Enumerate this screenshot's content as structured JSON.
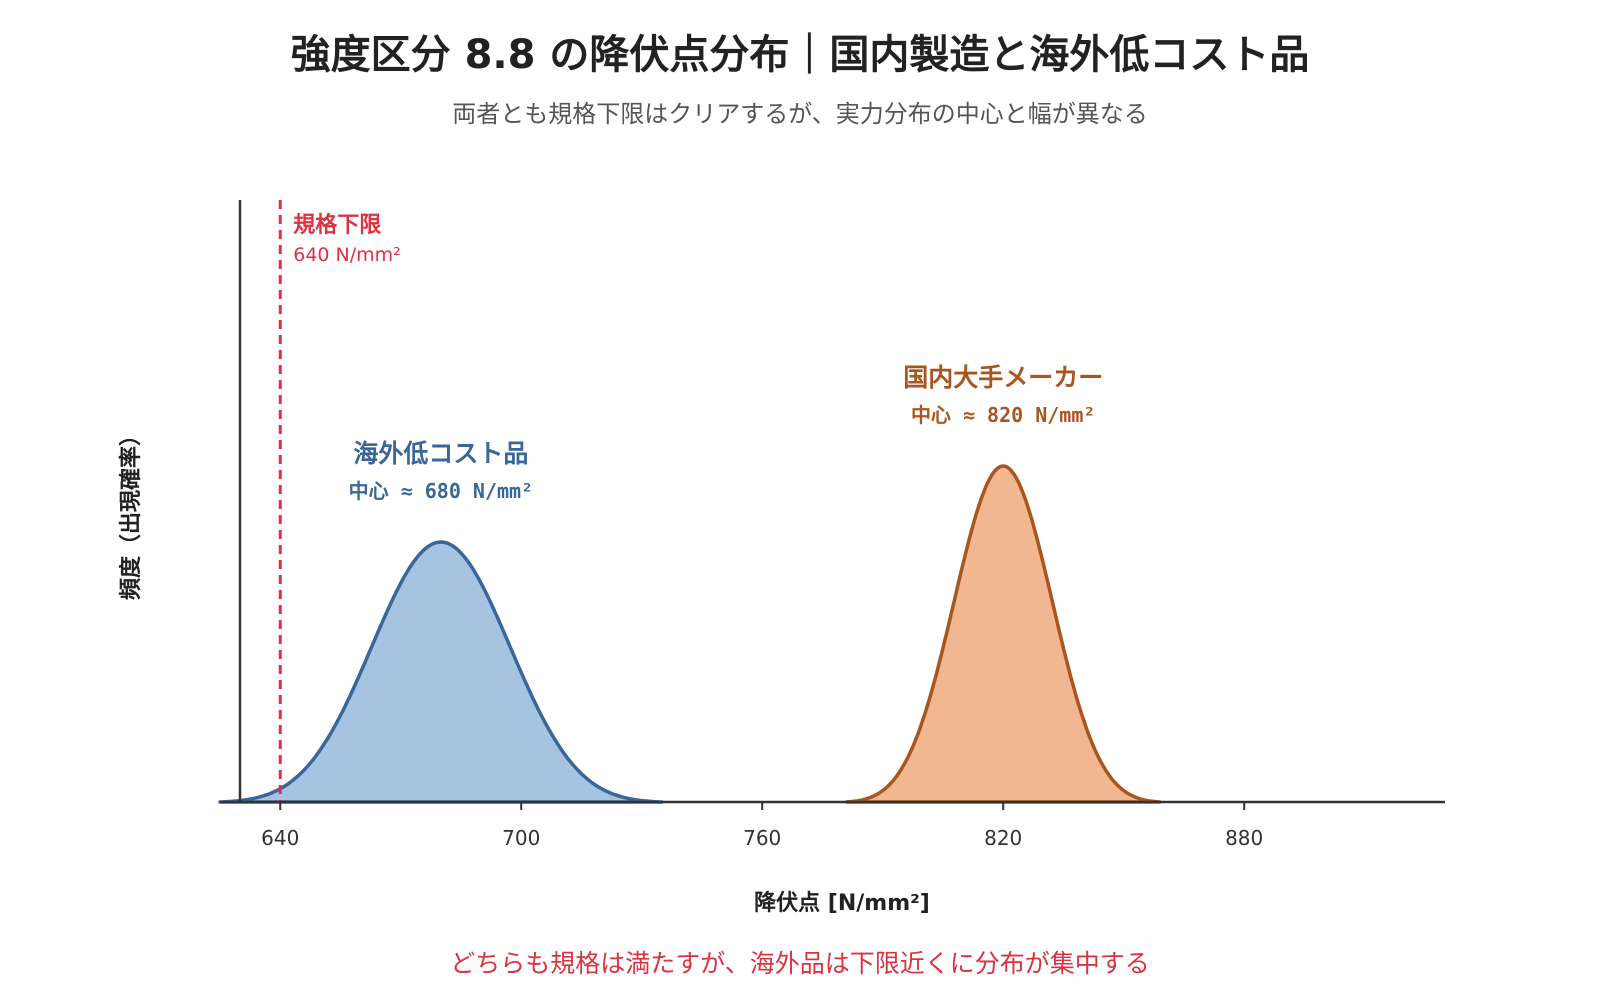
{
  "chart_data": {
    "type": "area",
    "title": "強度区分 8.8 の降伏点分布｜国内製造と海外低コスト品",
    "subtitle": "両者とも規格下限はクリアするが、実力分布の中心と幅が異なる",
    "xlabel": "降伏点 [N/mm²]",
    "ylabel": "頻度（出現確率）",
    "xlim": [
      625,
      930
    ],
    "x_ticks": [
      640,
      700,
      760,
      820,
      880
    ],
    "y_ticks_shown": false,
    "grid": false,
    "legend": "none",
    "series": [
      {
        "name": "海外低コスト品",
        "center_label": "中心 ≈ 680 N/mm²",
        "center": 680,
        "x_range": [
          625,
          735
        ],
        "peak_relative_height": 0.65,
        "color": "#3a6799",
        "fill": "#a6c3e1"
      },
      {
        "name": "国内大手メーカー",
        "center_label": "中心 ≈ 820 N/mm²",
        "center": 820,
        "x_range": [
          781,
          859
        ],
        "peak_relative_height": 0.84,
        "color": "#a8561f",
        "fill": "#f0b790"
      }
    ],
    "reference_line": {
      "x": 640,
      "name": "規格下限",
      "value_label": "640 N/mm²",
      "color": "#d9343f",
      "style": "dashed"
    },
    "footnote": "どちらも規格は満たすが、海外品は下限近くに分布が集中する",
    "footnote_color": "#d9343f",
    "axis_color": "#333333"
  }
}
